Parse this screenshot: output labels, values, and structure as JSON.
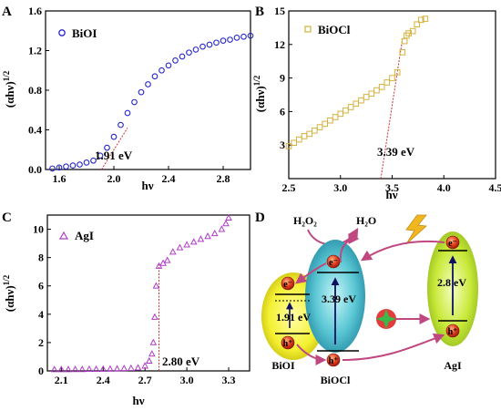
{
  "chart_data": [
    {
      "panel": "A",
      "type": "scatter",
      "legend": "BiOI",
      "legend_position": "top-left",
      "marker": "circle",
      "color": "#2727c8",
      "xlabel": "hν",
      "ylabel": "(αhν)1/2",
      "xlim": [
        1.5,
        3.0
      ],
      "ylim": [
        0.0,
        1.6
      ],
      "xticks": [
        "1.6",
        "2.0",
        "2.4",
        "2.8"
      ],
      "yticks": [
        "0.0",
        "0.4",
        "0.8",
        "1.2",
        "1.6"
      ],
      "annotation": "1.91 eV",
      "tangent": {
        "x1": 1.91,
        "y1": 0.0,
        "x2": 2.1,
        "y2": 0.42,
        "color": "#d03030"
      },
      "series_x": [
        1.55,
        1.6,
        1.65,
        1.7,
        1.75,
        1.8,
        1.85,
        1.9,
        1.95,
        2.0,
        2.05,
        2.1,
        2.15,
        2.2,
        2.25,
        2.3,
        2.35,
        2.4,
        2.45,
        2.5,
        2.55,
        2.6,
        2.65,
        2.7,
        2.75,
        2.8,
        2.85,
        2.9,
        2.95,
        3.0
      ],
      "series_y": [
        0.01,
        0.02,
        0.03,
        0.04,
        0.05,
        0.07,
        0.09,
        0.14,
        0.22,
        0.33,
        0.45,
        0.57,
        0.68,
        0.78,
        0.86,
        0.94,
        1.0,
        1.05,
        1.1,
        1.14,
        1.18,
        1.21,
        1.24,
        1.26,
        1.28,
        1.3,
        1.31,
        1.33,
        1.34,
        1.35
      ]
    },
    {
      "panel": "B",
      "type": "scatter",
      "legend": "BiOCl",
      "legend_position": "top-left",
      "marker": "square",
      "color": "#d4b23c",
      "xlabel": "hν",
      "ylabel": "(αhν)1/2",
      "xlim": [
        2.5,
        4.5
      ],
      "ylim": [
        0,
        15
      ],
      "xticks": [
        "2.5",
        "3.0",
        "3.5",
        "4.0",
        "4.5"
      ],
      "yticks": [
        "3",
        "6",
        "9",
        "12",
        "15"
      ],
      "annotation": "3.39 eV",
      "tangent": {
        "x1": 3.39,
        "y1": 0.0,
        "x2": 3.6,
        "y2": 12.5,
        "color": "#d03030"
      },
      "series_x": [
        2.5,
        2.55,
        2.6,
        2.65,
        2.7,
        2.75,
        2.8,
        2.85,
        2.9,
        2.95,
        3.0,
        3.05,
        3.1,
        3.15,
        3.2,
        3.25,
        3.3,
        3.35,
        3.4,
        3.45,
        3.5,
        3.55,
        3.6,
        3.62,
        3.64,
        3.66,
        3.7,
        3.74,
        3.78,
        3.82
      ],
      "series_y": [
        2.9,
        3.2,
        3.5,
        3.8,
        4.0,
        4.3,
        4.6,
        4.9,
        5.2,
        5.5,
        5.8,
        6.1,
        6.4,
        6.7,
        7.0,
        7.3,
        7.6,
        7.9,
        8.2,
        8.6,
        9.0,
        9.5,
        11.3,
        12.3,
        12.8,
        13.0,
        13.2,
        13.8,
        14.2,
        14.3
      ]
    },
    {
      "panel": "C",
      "type": "scatter",
      "legend": "AgI",
      "legend_position": "top-left",
      "marker": "triangle",
      "color": "#b03cc8",
      "xlabel": "hν",
      "ylabel": "(αhν)1/2",
      "xlim": [
        2.0,
        3.45
      ],
      "ylim": [
        0,
        11
      ],
      "xticks": [
        "2.1",
        "2.4",
        "2.7",
        "3.0",
        "3.3"
      ],
      "yticks": [
        "0",
        "2",
        "4",
        "6",
        "8",
        "10"
      ],
      "annotation": "2.80 eV",
      "tangent": {
        "x1": 2.8,
        "y1": 0.0,
        "x2": 2.8,
        "y2": 7.5,
        "color": "#d03030"
      },
      "series_x": [
        2.05,
        2.1,
        2.15,
        2.2,
        2.25,
        2.3,
        2.35,
        2.4,
        2.45,
        2.5,
        2.55,
        2.6,
        2.65,
        2.7,
        2.73,
        2.75,
        2.76,
        2.77,
        2.78,
        2.8,
        2.83,
        2.86,
        2.9,
        2.95,
        3.0,
        3.05,
        3.1,
        3.15,
        3.2,
        3.25,
        3.28,
        3.3
      ],
      "series_y": [
        0.1,
        0.1,
        0.1,
        0.11,
        0.11,
        0.12,
        0.12,
        0.13,
        0.14,
        0.15,
        0.17,
        0.19,
        0.22,
        0.35,
        0.7,
        1.2,
        2.0,
        3.8,
        6.0,
        7.4,
        7.6,
        7.8,
        8.4,
        8.7,
        8.9,
        9.1,
        9.3,
        9.5,
        9.7,
        10.0,
        10.4,
        10.8
      ]
    }
  ],
  "panel_labels": {
    "a": "A",
    "b": "B",
    "c": "C",
    "d": "D"
  },
  "diagram": {
    "h2o2": "H₂O₂",
    "h2o": "H₂O",
    "e_minus": "e⁻",
    "h_plus": "h⁺",
    "bioi_gap": "1.91 eV",
    "biocl_gap": "3.39 eV",
    "agi_gap": "2.8 eV",
    "bioi_label": "BiOI",
    "biocl_label": "BiOCl",
    "agi_label": "AgI"
  },
  "colors": {
    "ellipse_yellow": "#f0f020",
    "ellipse_cyan": "#30b8c8",
    "ellipse_green": "#b8e030",
    "arrow_pink": "#c04880",
    "carrier_red": "#d83020"
  }
}
